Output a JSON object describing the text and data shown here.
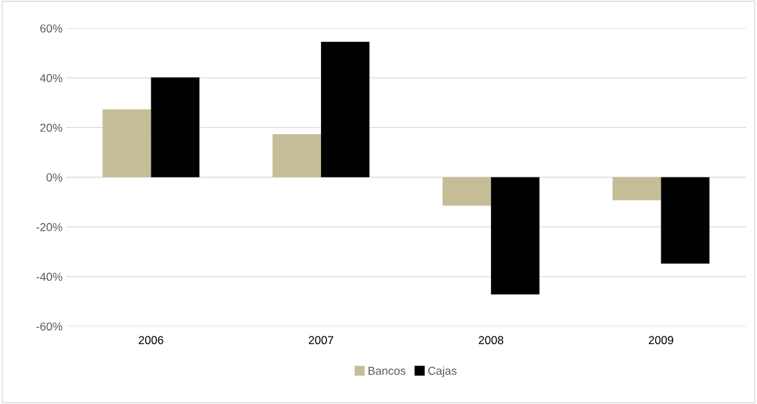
{
  "chart_data": {
    "type": "bar",
    "categories": [
      "2006",
      "2007",
      "2008",
      "2009"
    ],
    "series": [
      {
        "name": "Bancos",
        "color": "#c4bd97",
        "values": [
          27.4,
          17.3,
          -11.4,
          -9.3
        ]
      },
      {
        "name": "Cajas",
        "color": "#000000",
        "values": [
          40.2,
          54.5,
          -47.2,
          -34.8
        ]
      }
    ],
    "ylim": [
      -60,
      60
    ],
    "yticks": [
      {
        "value": -60,
        "label": "-60%"
      },
      {
        "value": -40,
        "label": "-40%"
      },
      {
        "value": -20,
        "label": "-20%"
      },
      {
        "value": 0,
        "label": "0%"
      },
      {
        "value": 20,
        "label": "20%"
      },
      {
        "value": 40,
        "label": "40%"
      },
      {
        "value": 60,
        "label": "60%"
      }
    ],
    "grid": "y",
    "legend": "bottom"
  }
}
